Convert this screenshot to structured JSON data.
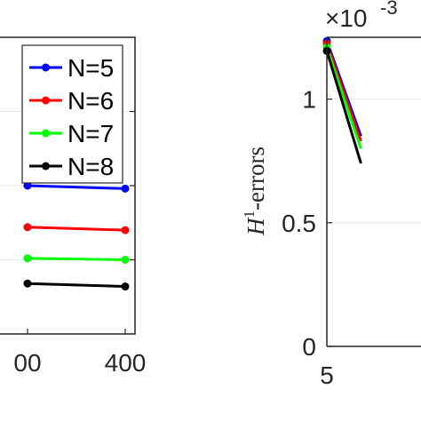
{
  "chart_data": [
    {
      "type": "line",
      "title": "",
      "xlabel": "",
      "ylabel": "",
      "x_tick_labels": [
        "00",
        "400"
      ],
      "x": [
        300,
        400
      ],
      "xlim": [
        270,
        410
      ],
      "ylim": [
        0,
        1
      ],
      "grid": true,
      "legend_placement": "top-right",
      "series": [
        {
          "name": "N=5",
          "color": "#0000ff",
          "x": [
            300,
            400
          ],
          "y": [
            0.5,
            0.49
          ]
        },
        {
          "name": "N=6",
          "color": "#ff0000",
          "x": [
            300,
            400
          ],
          "y": [
            0.36,
            0.35
          ]
        },
        {
          "name": "N=7",
          "color": "#00ff00",
          "x": [
            300,
            400
          ],
          "y": [
            0.255,
            0.25
          ]
        },
        {
          "name": "N=8",
          "color": "#000000",
          "x": [
            300,
            400
          ],
          "y": [
            0.17,
            0.16
          ]
        }
      ]
    },
    {
      "type": "line",
      "title": "",
      "xlabel": "",
      "ylabel_main": "H",
      "ylabel_sup": "1",
      "ylabel_rest": "-errors",
      "y_exponent_base": "×10",
      "y_exponent_power": "-3",
      "x_tick_labels": [
        "5"
      ],
      "y_tick_labels": [
        "0",
        "0.5",
        "1"
      ],
      "y_ticks": [
        0,
        0.5,
        1
      ],
      "ylim": [
        0,
        1.25
      ],
      "xlim": [
        5,
        20
      ],
      "grid": true,
      "series": [
        {
          "name": "N=5",
          "color": "#0000ff",
          "x": [
            5,
            8
          ],
          "y": [
            1.235,
            0.85
          ]
        },
        {
          "name": "N=6",
          "color": "#ff0000",
          "x": [
            5,
            8
          ],
          "y": [
            1.225,
            0.83
          ]
        },
        {
          "name": "N=7",
          "color": "#00ff00",
          "x": [
            5,
            8
          ],
          "y": [
            1.21,
            0.8
          ]
        },
        {
          "name": "N=8",
          "color": "#000000",
          "x": [
            5,
            8
          ],
          "y": [
            1.195,
            0.74
          ]
        }
      ]
    }
  ]
}
